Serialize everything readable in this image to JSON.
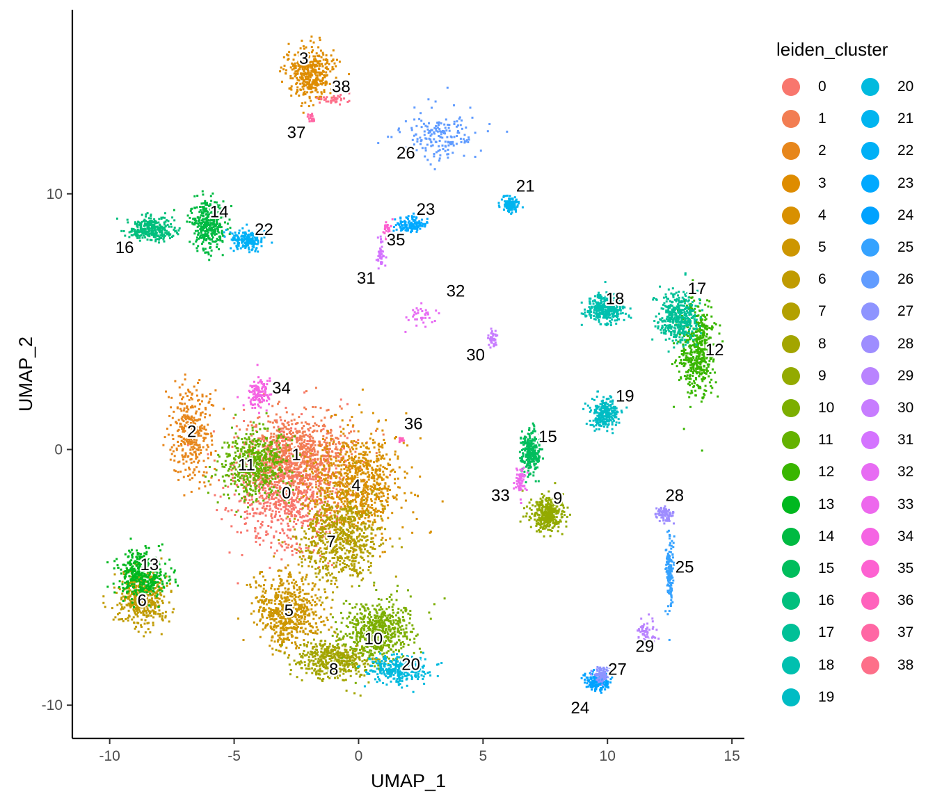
{
  "chart_data": {
    "type": "scatter",
    "xlabel": "UMAP_1",
    "ylabel": "UMAP_2",
    "xlim": [
      -11.5,
      15.5
    ],
    "ylim": [
      -11.3,
      17.2
    ],
    "x_ticks": [
      -10,
      -5,
      0,
      5,
      10,
      15
    ],
    "y_ticks": [
      -10,
      0,
      10
    ],
    "x_tick_labels": [
      "-10",
      "-5",
      "0",
      "5",
      "10",
      "15"
    ],
    "y_tick_labels": [
      "-10",
      "0",
      "10"
    ],
    "legend_title": "leiden_cluster",
    "legend_position": "right",
    "grid": false,
    "clusters": [
      {
        "id": "0",
        "color": "#F8766D",
        "x": -2.9,
        "y": -1.6,
        "sx": 1.8,
        "sy": 2.2,
        "n": 900
      },
      {
        "id": "1",
        "color": "#F27D52",
        "x": -2.4,
        "y": -0.2,
        "sx": 2.0,
        "sy": 1.6,
        "n": 800
      },
      {
        "id": "2",
        "color": "#E7861B",
        "x": -6.7,
        "y": 0.7,
        "sx": 0.7,
        "sy": 1.6,
        "n": 350
      },
      {
        "id": "3",
        "color": "#DE8C00",
        "x": -1.9,
        "y": 14.7,
        "sx": 0.9,
        "sy": 0.9,
        "n": 400
      },
      {
        "id": "4",
        "color": "#D89000",
        "x": -0.1,
        "y": -1.4,
        "sx": 1.6,
        "sy": 1.8,
        "n": 800
      },
      {
        "id": "5",
        "color": "#CD9600",
        "x": -2.8,
        "y": -6.3,
        "sx": 1.2,
        "sy": 1.3,
        "n": 600
      },
      {
        "id": "6",
        "color": "#C09B00",
        "x": -8.7,
        "y": -5.8,
        "sx": 0.9,
        "sy": 1.0,
        "n": 450
      },
      {
        "id": "7",
        "color": "#B3A000",
        "x": -0.8,
        "y": -3.5,
        "sx": 1.5,
        "sy": 1.5,
        "n": 650
      },
      {
        "id": "8",
        "color": "#A3A500",
        "x": -1.0,
        "y": -8.2,
        "sx": 1.4,
        "sy": 0.7,
        "n": 450
      },
      {
        "id": "9",
        "color": "#93AA00",
        "x": 7.6,
        "y": -2.5,
        "sx": 0.6,
        "sy": 0.6,
        "n": 350
      },
      {
        "id": "10",
        "color": "#7CAE00",
        "x": 0.7,
        "y": -7.1,
        "sx": 1.3,
        "sy": 1.1,
        "n": 600
      },
      {
        "id": "11",
        "color": "#64B200",
        "x": -4.2,
        "y": -0.6,
        "sx": 1.2,
        "sy": 1.2,
        "n": 500
      },
      {
        "id": "12",
        "color": "#39B600",
        "x": 13.6,
        "y": 3.9,
        "sx": 0.6,
        "sy": 1.6,
        "n": 500
      },
      {
        "id": "13",
        "color": "#00B81F",
        "x": -8.7,
        "y": -4.9,
        "sx": 0.9,
        "sy": 0.8,
        "n": 400
      },
      {
        "id": "14",
        "color": "#00BA42",
        "x": -6.0,
        "y": 8.8,
        "sx": 0.6,
        "sy": 0.9,
        "n": 350
      },
      {
        "id": "15",
        "color": "#00BD5C",
        "x": 6.9,
        "y": -0.1,
        "sx": 0.35,
        "sy": 0.8,
        "n": 250
      },
      {
        "id": "16",
        "color": "#00BF7D",
        "x": -8.3,
        "y": 8.6,
        "sx": 0.9,
        "sy": 0.4,
        "n": 300
      },
      {
        "id": "17",
        "color": "#00C097",
        "x": 12.8,
        "y": 5.2,
        "sx": 0.7,
        "sy": 0.9,
        "n": 400
      },
      {
        "id": "18",
        "color": "#00C0AF",
        "x": 9.9,
        "y": 5.5,
        "sx": 0.7,
        "sy": 0.5,
        "n": 350
      },
      {
        "id": "19",
        "color": "#00BCC4",
        "x": 9.9,
        "y": 1.4,
        "sx": 0.5,
        "sy": 0.5,
        "n": 250
      },
      {
        "id": "20",
        "color": "#00BADE",
        "x": 1.6,
        "y": -8.6,
        "sx": 1.1,
        "sy": 0.5,
        "n": 300
      },
      {
        "id": "21",
        "color": "#00B4EF",
        "x": 6.1,
        "y": 9.6,
        "sx": 0.3,
        "sy": 0.3,
        "n": 120
      },
      {
        "id": "22",
        "color": "#00B0F6",
        "x": -4.5,
        "y": 8.2,
        "sx": 0.6,
        "sy": 0.35,
        "n": 200
      },
      {
        "id": "23",
        "color": "#00A9FF",
        "x": 2.1,
        "y": 8.8,
        "sx": 0.6,
        "sy": 0.3,
        "n": 130
      },
      {
        "id": "24",
        "color": "#00A2FF",
        "x": 9.6,
        "y": -9.1,
        "sx": 0.4,
        "sy": 0.3,
        "n": 180
      },
      {
        "id": "25",
        "color": "#35A2FF",
        "x": 12.5,
        "y": -4.7,
        "sx": 0.15,
        "sy": 1.3,
        "n": 150
      },
      {
        "id": "26",
        "color": "#619CFF",
        "x": 3.2,
        "y": 12.3,
        "sx": 1.6,
        "sy": 0.9,
        "n": 180
      },
      {
        "id": "27",
        "color": "#8E94FF",
        "x": 9.8,
        "y": -8.8,
        "sx": 0.3,
        "sy": 0.25,
        "n": 90
      },
      {
        "id": "28",
        "color": "#9E8DFF",
        "x": 12.3,
        "y": -2.5,
        "sx": 0.3,
        "sy": 0.3,
        "n": 80
      },
      {
        "id": "29",
        "color": "#B983FF",
        "x": 11.6,
        "y": -7.3,
        "sx": 0.3,
        "sy": 0.6,
        "n": 70
      },
      {
        "id": "30",
        "color": "#C77CFF",
        "x": 5.4,
        "y": 4.3,
        "sx": 0.15,
        "sy": 0.3,
        "n": 35
      },
      {
        "id": "31",
        "color": "#D473FF",
        "x": 0.9,
        "y": 7.6,
        "sx": 0.15,
        "sy": 0.6,
        "n": 40
      },
      {
        "id": "32",
        "color": "#E76BF3",
        "x": 2.5,
        "y": 5.2,
        "sx": 0.6,
        "sy": 0.4,
        "n": 35
      },
      {
        "id": "33",
        "color": "#ED68ED",
        "x": 6.5,
        "y": -1.2,
        "sx": 0.2,
        "sy": 0.5,
        "n": 60
      },
      {
        "id": "34",
        "color": "#F564E3",
        "x": -4.0,
        "y": 2.2,
        "sx": 0.4,
        "sy": 0.5,
        "n": 120
      },
      {
        "id": "35",
        "color": "#FD61D1",
        "x": 1.2,
        "y": 8.6,
        "sx": 0.15,
        "sy": 0.3,
        "n": 30
      },
      {
        "id": "36",
        "color": "#FF62BC",
        "x": 1.7,
        "y": 0.4,
        "sx": 0.1,
        "sy": 0.1,
        "n": 12
      },
      {
        "id": "37",
        "color": "#FF67A4",
        "x": -1.9,
        "y": 13.0,
        "sx": 0.1,
        "sy": 0.2,
        "n": 20
      },
      {
        "id": "38",
        "color": "#FD6F89",
        "x": -1.0,
        "y": 13.7,
        "sx": 0.6,
        "sy": 0.15,
        "n": 40
      }
    ],
    "cluster_labels": [
      {
        "text": "0",
        "x": -2.9,
        "y": -1.7
      },
      {
        "text": "1",
        "x": -2.5,
        "y": -0.2
      },
      {
        "text": "2",
        "x": -6.7,
        "y": 0.7
      },
      {
        "text": "3",
        "x": -2.2,
        "y": 15.3
      },
      {
        "text": "4",
        "x": -0.1,
        "y": -1.4
      },
      {
        "text": "5",
        "x": -2.8,
        "y": -6.3
      },
      {
        "text": "6",
        "x": -8.7,
        "y": -5.9
      },
      {
        "text": "7",
        "x": -1.1,
        "y": -3.6
      },
      {
        "text": "8",
        "x": -1.0,
        "y": -8.6
      },
      {
        "text": "9",
        "x": 8.0,
        "y": -1.9
      },
      {
        "text": "10",
        "x": 0.6,
        "y": -7.4
      },
      {
        "text": "11",
        "x": -4.5,
        "y": -0.6
      },
      {
        "text": "12",
        "x": 14.3,
        "y": 3.9
      },
      {
        "text": "13",
        "x": -8.4,
        "y": -4.5
      },
      {
        "text": "14",
        "x": -5.6,
        "y": 9.3
      },
      {
        "text": "15",
        "x": 7.6,
        "y": 0.5
      },
      {
        "text": "16",
        "x": -9.4,
        "y": 7.9
      },
      {
        "text": "17",
        "x": 13.6,
        "y": 6.3
      },
      {
        "text": "18",
        "x": 10.3,
        "y": 5.9
      },
      {
        "text": "19",
        "x": 10.7,
        "y": 2.1
      },
      {
        "text": "20",
        "x": 2.1,
        "y": -8.4
      },
      {
        "text": "21",
        "x": 6.7,
        "y": 10.3
      },
      {
        "text": "22",
        "x": -3.8,
        "y": 8.6
      },
      {
        "text": "23",
        "x": 2.7,
        "y": 9.4
      },
      {
        "text": "24",
        "x": 8.9,
        "y": -10.1
      },
      {
        "text": "25",
        "x": 13.1,
        "y": -4.6
      },
      {
        "text": "26",
        "x": 1.9,
        "y": 11.6
      },
      {
        "text": "27",
        "x": 10.4,
        "y": -8.6
      },
      {
        "text": "28",
        "x": 12.7,
        "y": -1.8
      },
      {
        "text": "29",
        "x": 11.5,
        "y": -7.7
      },
      {
        "text": "30",
        "x": 4.7,
        "y": 3.7
      },
      {
        "text": "31",
        "x": 0.3,
        "y": 6.7
      },
      {
        "text": "32",
        "x": 3.9,
        "y": 6.2
      },
      {
        "text": "33",
        "x": 5.7,
        "y": -1.8
      },
      {
        "text": "34",
        "x": -3.1,
        "y": 2.4
      },
      {
        "text": "35",
        "x": 1.5,
        "y": 8.2
      },
      {
        "text": "36",
        "x": 2.2,
        "y": 1.0
      },
      {
        "text": "37",
        "x": -2.5,
        "y": 12.4
      },
      {
        "text": "38",
        "x": -0.7,
        "y": 14.2
      }
    ]
  }
}
